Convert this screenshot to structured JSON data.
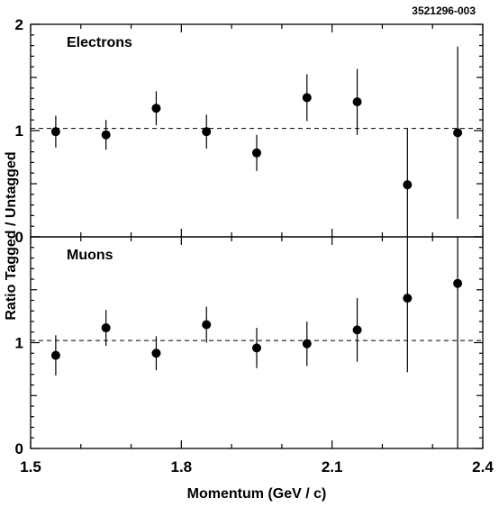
{
  "figure_id": "3521296-003",
  "colors": {
    "axis": "#000000",
    "marker": "#000000",
    "reference_line": "#000000"
  },
  "chart_data": [
    {
      "type": "scatter",
      "panel_label": "Electrons",
      "title": "",
      "xlabel": "Momentum (GeV / c)",
      "ylabel": "Ratio Tagged / Untagged",
      "xlim": [
        1.5,
        2.4
      ],
      "ylim": [
        0,
        2
      ],
      "x_ticks": [
        "1.5",
        "1.8",
        "2.1",
        "2.4"
      ],
      "y_ticks": [
        "0",
        "1",
        "2"
      ],
      "reference_line_y": 1.02,
      "grid": false,
      "points": [
        {
          "x": 1.55,
          "y": 0.99,
          "err": 0.15
        },
        {
          "x": 1.65,
          "y": 0.96,
          "err": 0.14
        },
        {
          "x": 1.75,
          "y": 1.21,
          "err": 0.16
        },
        {
          "x": 1.85,
          "y": 0.99,
          "err": 0.16
        },
        {
          "x": 1.95,
          "y": 0.79,
          "err": 0.17
        },
        {
          "x": 2.05,
          "y": 1.31,
          "err": 0.22
        },
        {
          "x": 2.15,
          "y": 1.27,
          "err": 0.31
        },
        {
          "x": 2.25,
          "y": 0.49,
          "err": 0.53
        },
        {
          "x": 2.35,
          "y": 0.98,
          "err": 0.81
        }
      ]
    },
    {
      "type": "scatter",
      "panel_label": "Muons",
      "title": "",
      "xlabel": "Momentum (GeV / c)",
      "ylabel": "Ratio Tagged / Untagged",
      "xlim": [
        1.5,
        2.4
      ],
      "ylim": [
        0,
        2
      ],
      "x_ticks": [
        "1.5",
        "1.8",
        "2.1",
        "2.4"
      ],
      "y_ticks": [
        "0",
        "1"
      ],
      "reference_line_y": 1.02,
      "grid": false,
      "points": [
        {
          "x": 1.55,
          "y": 0.88,
          "err": 0.19
        },
        {
          "x": 1.65,
          "y": 1.14,
          "err": 0.17
        },
        {
          "x": 1.75,
          "y": 0.9,
          "err": 0.16
        },
        {
          "x": 1.85,
          "y": 1.17,
          "err": 0.17
        },
        {
          "x": 1.95,
          "y": 0.95,
          "err": 0.19
        },
        {
          "x": 2.05,
          "y": 0.99,
          "err": 0.21
        },
        {
          "x": 2.15,
          "y": 1.12,
          "err": 0.3
        },
        {
          "x": 2.25,
          "y": 1.42,
          "err": 0.7
        },
        {
          "x": 2.35,
          "y": 1.56,
          "err": 1.56
        }
      ]
    }
  ]
}
